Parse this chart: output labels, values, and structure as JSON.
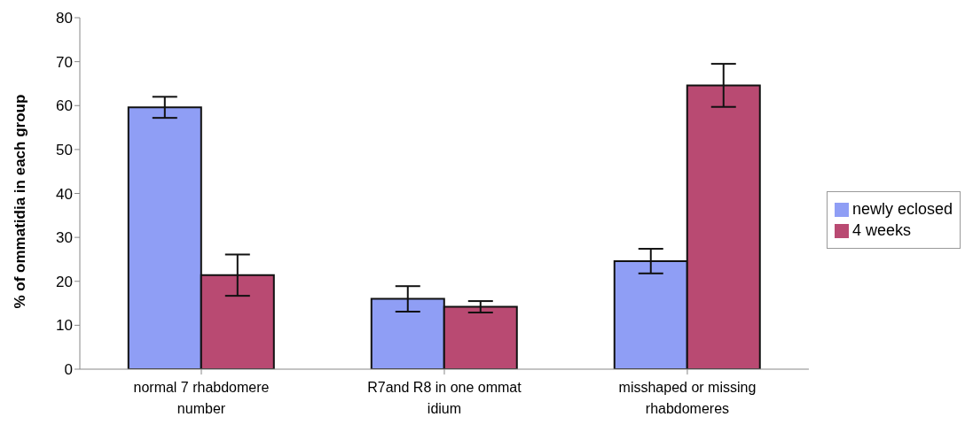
{
  "chart_data": {
    "type": "bar",
    "ylabel": "% of ommatidia in each group",
    "categories": [
      "normal 7 rhabdomere number",
      "R7and R8 in one ommat idium",
      "misshaped or missing rhabdomeres"
    ],
    "series": [
      {
        "name": "newly eclosed",
        "color": "#8f9ef5",
        "values": [
          59.6,
          16,
          24.6
        ],
        "errors": [
          2.4,
          2.9,
          2.8
        ]
      },
      {
        "name": "4 weeks",
        "color": "#b94a72",
        "values": [
          21.4,
          14.2,
          64.6
        ],
        "errors": [
          4.7,
          1.3,
          4.9
        ]
      }
    ],
    "ylim": [
      0,
      80
    ],
    "yticks": [
      0,
      10,
      20,
      30,
      40,
      50,
      60,
      70,
      80
    ],
    "grid": false,
    "legend": "right"
  }
}
